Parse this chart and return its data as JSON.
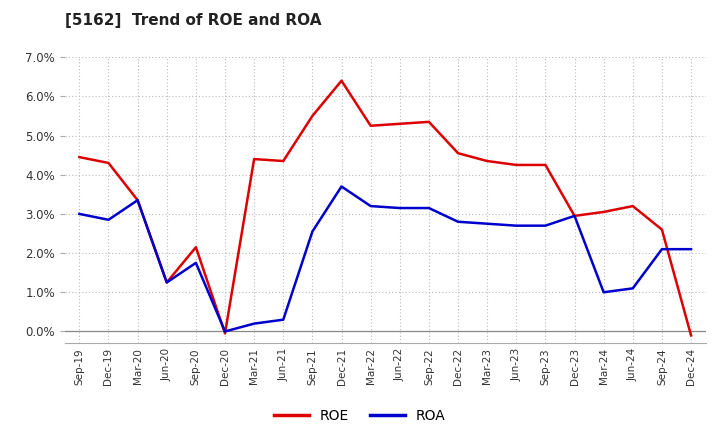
{
  "title": "[5162]  Trend of ROE and ROA",
  "x_labels": [
    "Sep-19",
    "Dec-19",
    "Mar-20",
    "Jun-20",
    "Sep-20",
    "Dec-20",
    "Mar-21",
    "Jun-21",
    "Sep-21",
    "Dec-21",
    "Mar-22",
    "Jun-22",
    "Sep-22",
    "Dec-22",
    "Mar-23",
    "Jun-23",
    "Sep-23",
    "Dec-23",
    "Mar-24",
    "Jun-24",
    "Sep-24",
    "Dec-24"
  ],
  "roe": [
    4.45,
    4.3,
    3.35,
    1.25,
    2.15,
    -0.05,
    4.4,
    4.35,
    5.5,
    6.4,
    5.25,
    5.3,
    5.35,
    4.55,
    4.35,
    4.25,
    4.25,
    2.95,
    3.05,
    3.2,
    2.6,
    -0.1
  ],
  "roa": [
    3.0,
    2.85,
    3.35,
    1.25,
    1.75,
    0.0,
    0.2,
    0.3,
    2.55,
    3.7,
    3.2,
    3.15,
    3.15,
    2.8,
    2.75,
    2.7,
    2.7,
    2.95,
    1.0,
    1.1,
    2.1,
    2.1
  ],
  "roe_color": "#dd0000",
  "roa_color": "#0000cc",
  "ylim": [
    -0.3,
    7.0
  ],
  "yticks": [
    0.0,
    1.0,
    2.0,
    3.0,
    4.0,
    5.0,
    6.0,
    7.0
  ],
  "grid_color": "#bbbbbb",
  "bg_color": "#ffffff",
  "plot_bg_color": "#ffffff",
  "legend_roe": "ROE",
  "legend_roa": "ROA"
}
